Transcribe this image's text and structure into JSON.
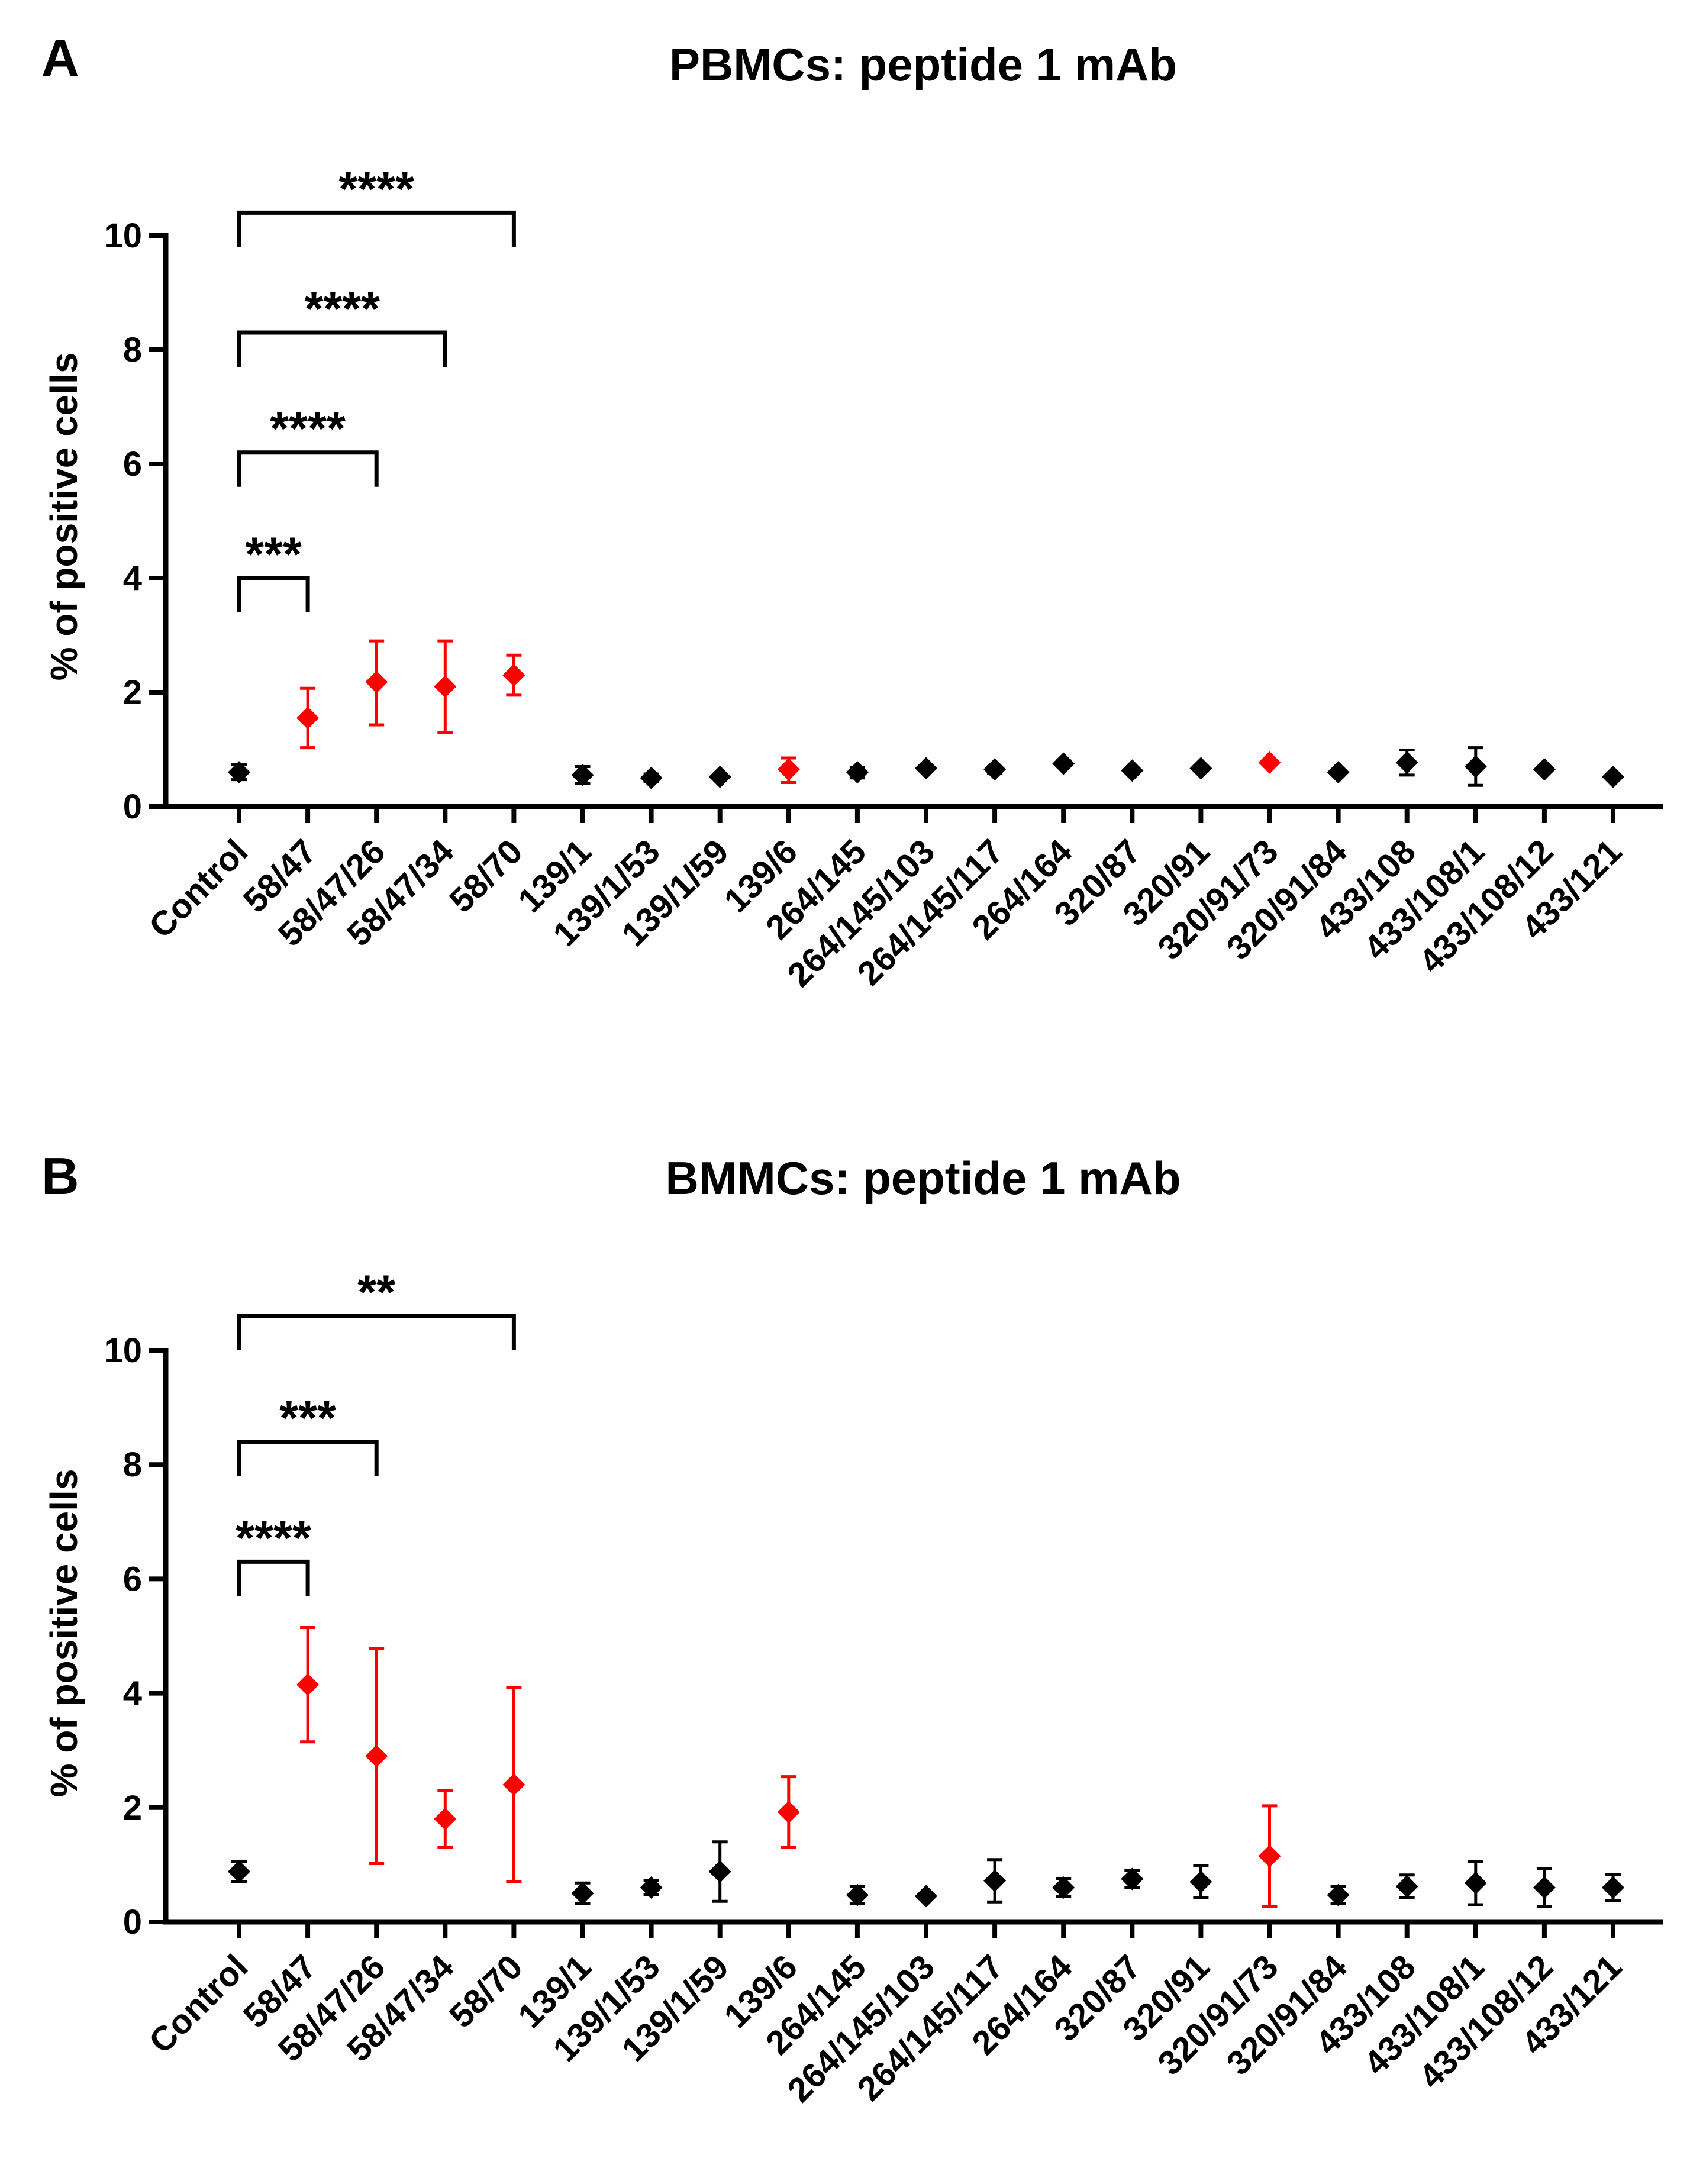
{
  "chart_data": [
    {
      "panel": "A",
      "type": "scatter",
      "title": "PBMCs: peptide 1 mAb",
      "xlabel": "",
      "ylabel": "% of positive cells",
      "ylim": [
        0,
        10
      ],
      "yticks": [
        "0",
        "2",
        "4",
        "6",
        "8",
        "10"
      ],
      "categories": [
        "Control",
        "58/47",
        "58/47/26",
        "58/47/34",
        "58/70",
        "139/1",
        "139/1/53",
        "139/1/59",
        "139/6",
        "264/145",
        "264/145/103",
        "264/145/117",
        "264/164",
        "320/87",
        "320/91",
        "320/91/73",
        "320/91/84",
        "433/108",
        "433/108/1",
        "433/108/12",
        "433/121"
      ],
      "values": [
        0.6,
        1.55,
        2.18,
        2.1,
        2.3,
        0.55,
        0.5,
        0.52,
        0.65,
        0.6,
        0.67,
        0.65,
        0.75,
        0.63,
        0.67,
        0.77,
        0.6,
        0.77,
        0.7,
        0.65,
        0.52
      ],
      "err_low": [
        0.13,
        0.52,
        0.75,
        0.8,
        0.35,
        0.15,
        0.07,
        0.0,
        0.23,
        0.1,
        0.04,
        0.07,
        0.03,
        0.0,
        0.05,
        0.03,
        0.04,
        0.22,
        0.33,
        0.04,
        0.0
      ],
      "err_high": [
        0.13,
        0.52,
        0.72,
        0.8,
        0.35,
        0.15,
        0.07,
        0.0,
        0.2,
        0.08,
        0.04,
        0.05,
        0.05,
        0.0,
        0.05,
        0.03,
        0.04,
        0.22,
        0.33,
        0.04,
        0.0
      ],
      "colors": [
        "#000000",
        "#ff0000",
        "#ff0000",
        "#ff0000",
        "#ff0000",
        "#000000",
        "#000000",
        "#000000",
        "#ff0000",
        "#000000",
        "#000000",
        "#000000",
        "#000000",
        "#000000",
        "#000000",
        "#ff0000",
        "#000000",
        "#000000",
        "#000000",
        "#000000",
        "#000000"
      ],
      "significance": [
        {
          "from": 0,
          "to": 1,
          "label": "***",
          "level": 4.0
        },
        {
          "from": 0,
          "to": 2,
          "label": "****",
          "level": 6.2
        },
        {
          "from": 0,
          "to": 3,
          "label": "****",
          "level": 8.3
        },
        {
          "from": 0,
          "to": 4,
          "label": "****",
          "level": 10.4
        }
      ]
    },
    {
      "panel": "B",
      "type": "scatter",
      "title": "BMMCs: peptide 1 mAb",
      "xlabel": "",
      "ylabel": "% of positive cells",
      "ylim": [
        0,
        10
      ],
      "yticks": [
        "0",
        "2",
        "4",
        "6",
        "8",
        "10"
      ],
      "categories": [
        "Control",
        "58/47",
        "58/47/26",
        "58/47/34",
        "58/70",
        "139/1",
        "139/1/53",
        "139/1/59",
        "139/6",
        "264/145",
        "264/145/103",
        "264/145/117",
        "264/164",
        "320/87",
        "320/91",
        "320/91/73",
        "320/91/84",
        "433/108",
        "433/108/1",
        "433/108/12",
        "433/121"
      ],
      "values": [
        0.88,
        4.15,
        2.9,
        1.8,
        2.4,
        0.5,
        0.6,
        0.88,
        1.92,
        0.47,
        0.45,
        0.72,
        0.6,
        0.75,
        0.7,
        1.15,
        0.47,
        0.62,
        0.68,
        0.6,
        0.6
      ],
      "err_low": [
        0.18,
        1.0,
        1.88,
        0.5,
        1.7,
        0.18,
        0.12,
        0.52,
        0.62,
        0.15,
        0.0,
        0.37,
        0.15,
        0.15,
        0.28,
        0.88,
        0.15,
        0.2,
        0.38,
        0.33,
        0.23
      ],
      "err_high": [
        0.18,
        1.0,
        1.88,
        0.5,
        1.7,
        0.18,
        0.12,
        0.52,
        0.62,
        0.15,
        0.0,
        0.37,
        0.15,
        0.15,
        0.28,
        0.88,
        0.15,
        0.2,
        0.38,
        0.33,
        0.23
      ],
      "colors": [
        "#000000",
        "#ff0000",
        "#ff0000",
        "#ff0000",
        "#ff0000",
        "#000000",
        "#000000",
        "#000000",
        "#ff0000",
        "#000000",
        "#000000",
        "#000000",
        "#000000",
        "#000000",
        "#000000",
        "#ff0000",
        "#000000",
        "#000000",
        "#000000",
        "#000000",
        "#000000"
      ],
      "significance": [
        {
          "from": 0,
          "to": 1,
          "label": "****",
          "level": 6.3
        },
        {
          "from": 0,
          "to": 2,
          "label": "***",
          "level": 8.4
        },
        {
          "from": 0,
          "to": 4,
          "label": "**",
          "level": 10.6
        }
      ]
    }
  ]
}
